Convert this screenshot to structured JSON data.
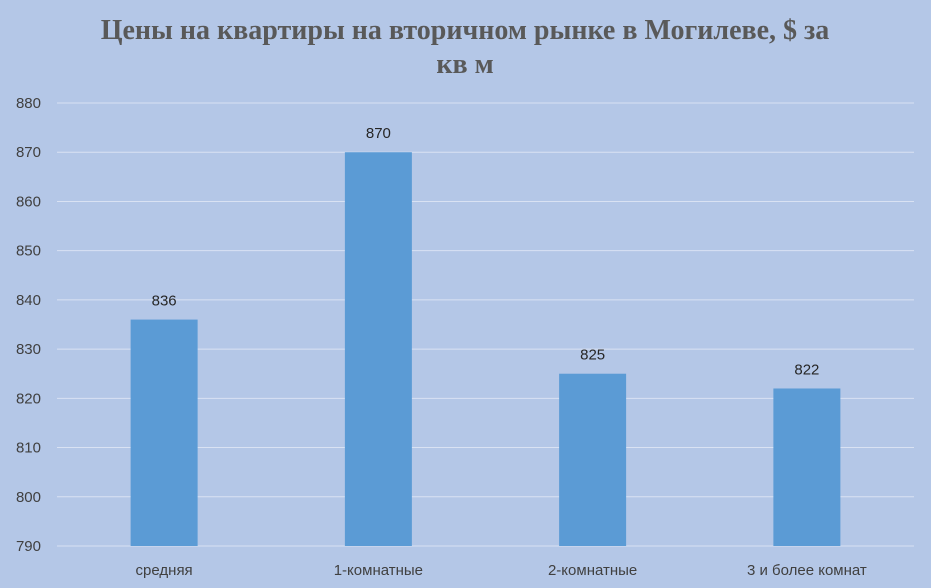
{
  "chart_data": {
    "type": "bar",
    "title": "Цены на квартиры на вторичном рынке в Могилеве, $ за кв м",
    "categories": [
      "средняя",
      "1-комнатные",
      "2-комнатные",
      "3 и более комнат"
    ],
    "values": [
      836,
      870,
      825,
      822
    ],
    "data_labels": [
      "836",
      "870",
      "825",
      "822"
    ],
    "ylim": [
      790,
      880
    ],
    "yticks": [
      790,
      800,
      810,
      820,
      830,
      840,
      850,
      860,
      870,
      880
    ],
    "xlabel": "",
    "ylabel": "",
    "grid": true,
    "legend": "none",
    "colors": {
      "bar": "#5b9bd5",
      "background": "#b4c7e7",
      "gridline": "#d9e2f3",
      "title": "#595959"
    }
  }
}
